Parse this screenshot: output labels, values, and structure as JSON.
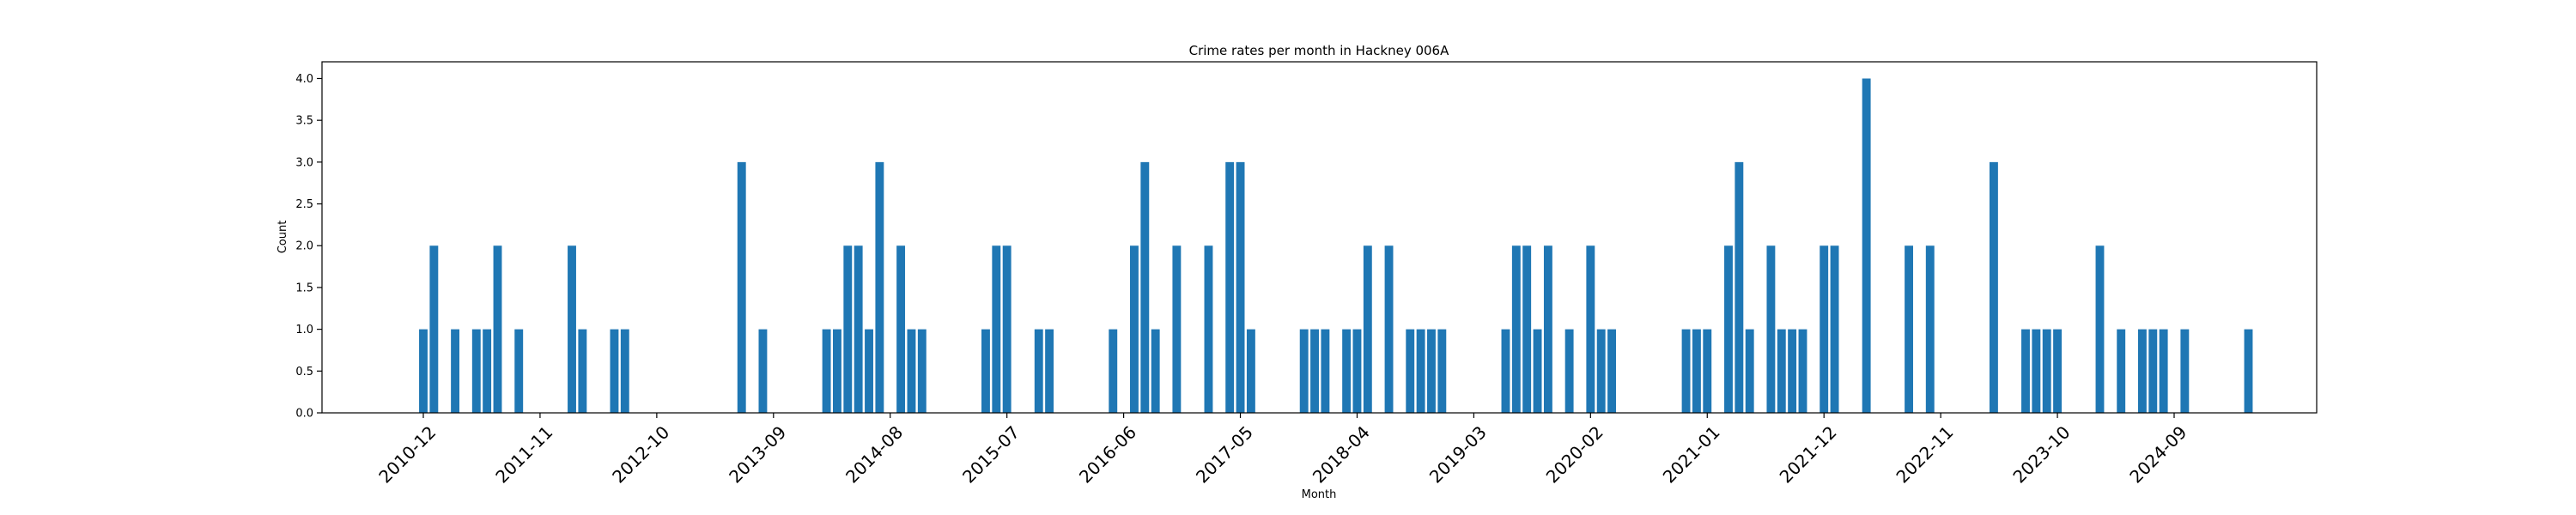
{
  "chart_data": {
    "type": "bar",
    "title": "Crime rates per month in Hackney 006A",
    "xlabel": "Month",
    "ylabel": "Count",
    "ylim": [
      0,
      4.2
    ],
    "yticks": [
      "0.0",
      "0.5",
      "1.0",
      "1.5",
      "2.0",
      "2.5",
      "3.0",
      "3.5",
      "4.0"
    ],
    "xticks": [
      "2010-12",
      "2011-11",
      "2012-10",
      "2013-09",
      "2014-08",
      "2015-07",
      "2016-06",
      "2017-05",
      "2018-04",
      "2019-03",
      "2020-02",
      "2021-01",
      "2021-12",
      "2022-11",
      "2023-10",
      "2024-09"
    ],
    "grid": false,
    "color": "#1f77b4",
    "categories": [
      "2010-12",
      "2011-01",
      "2011-03",
      "2011-05",
      "2011-06",
      "2011-07",
      "2011-09",
      "2012-02",
      "2012-03",
      "2012-06",
      "2012-07",
      "2013-06",
      "2013-08",
      "2014-02",
      "2014-03",
      "2014-04",
      "2014-05",
      "2014-06",
      "2014-07",
      "2014-09",
      "2014-10",
      "2014-11",
      "2015-05",
      "2015-06",
      "2015-07",
      "2015-10",
      "2015-11",
      "2016-05",
      "2016-07",
      "2016-08",
      "2016-09",
      "2016-11",
      "2017-02",
      "2017-04",
      "2017-05",
      "2017-06",
      "2017-11",
      "2017-12",
      "2018-01",
      "2018-03",
      "2018-04",
      "2018-05",
      "2018-07",
      "2018-09",
      "2018-10",
      "2018-11",
      "2018-12",
      "2019-06",
      "2019-07",
      "2019-08",
      "2019-09",
      "2019-10",
      "2019-12",
      "2020-02",
      "2020-03",
      "2020-04",
      "2020-11",
      "2020-12",
      "2021-01",
      "2021-03",
      "2021-04",
      "2021-05",
      "2021-07",
      "2021-08",
      "2021-09",
      "2021-10",
      "2021-12",
      "2022-01",
      "2022-04",
      "2022-08",
      "2022-10",
      "2023-04",
      "2023-07",
      "2023-08",
      "2023-09",
      "2023-10",
      "2024-02",
      "2024-04",
      "2024-06",
      "2024-07",
      "2024-08",
      "2024-10",
      "2025-04"
    ],
    "values": [
      1,
      2,
      1,
      1,
      1,
      2,
      1,
      2,
      1,
      1,
      1,
      3,
      1,
      1,
      1,
      2,
      2,
      1,
      3,
      2,
      1,
      1,
      1,
      2,
      2,
      1,
      1,
      1,
      2,
      3,
      1,
      2,
      2,
      3,
      3,
      1,
      1,
      1,
      1,
      1,
      1,
      2,
      2,
      1,
      1,
      1,
      1,
      1,
      2,
      2,
      1,
      2,
      1,
      2,
      1,
      1,
      1,
      1,
      1,
      2,
      3,
      1,
      2,
      1,
      1,
      1,
      2,
      2,
      4,
      2,
      2,
      3,
      1,
      1,
      1,
      1,
      2,
      1,
      1,
      1,
      1,
      1,
      1
    ],
    "bar_width_months": 0.8
  }
}
